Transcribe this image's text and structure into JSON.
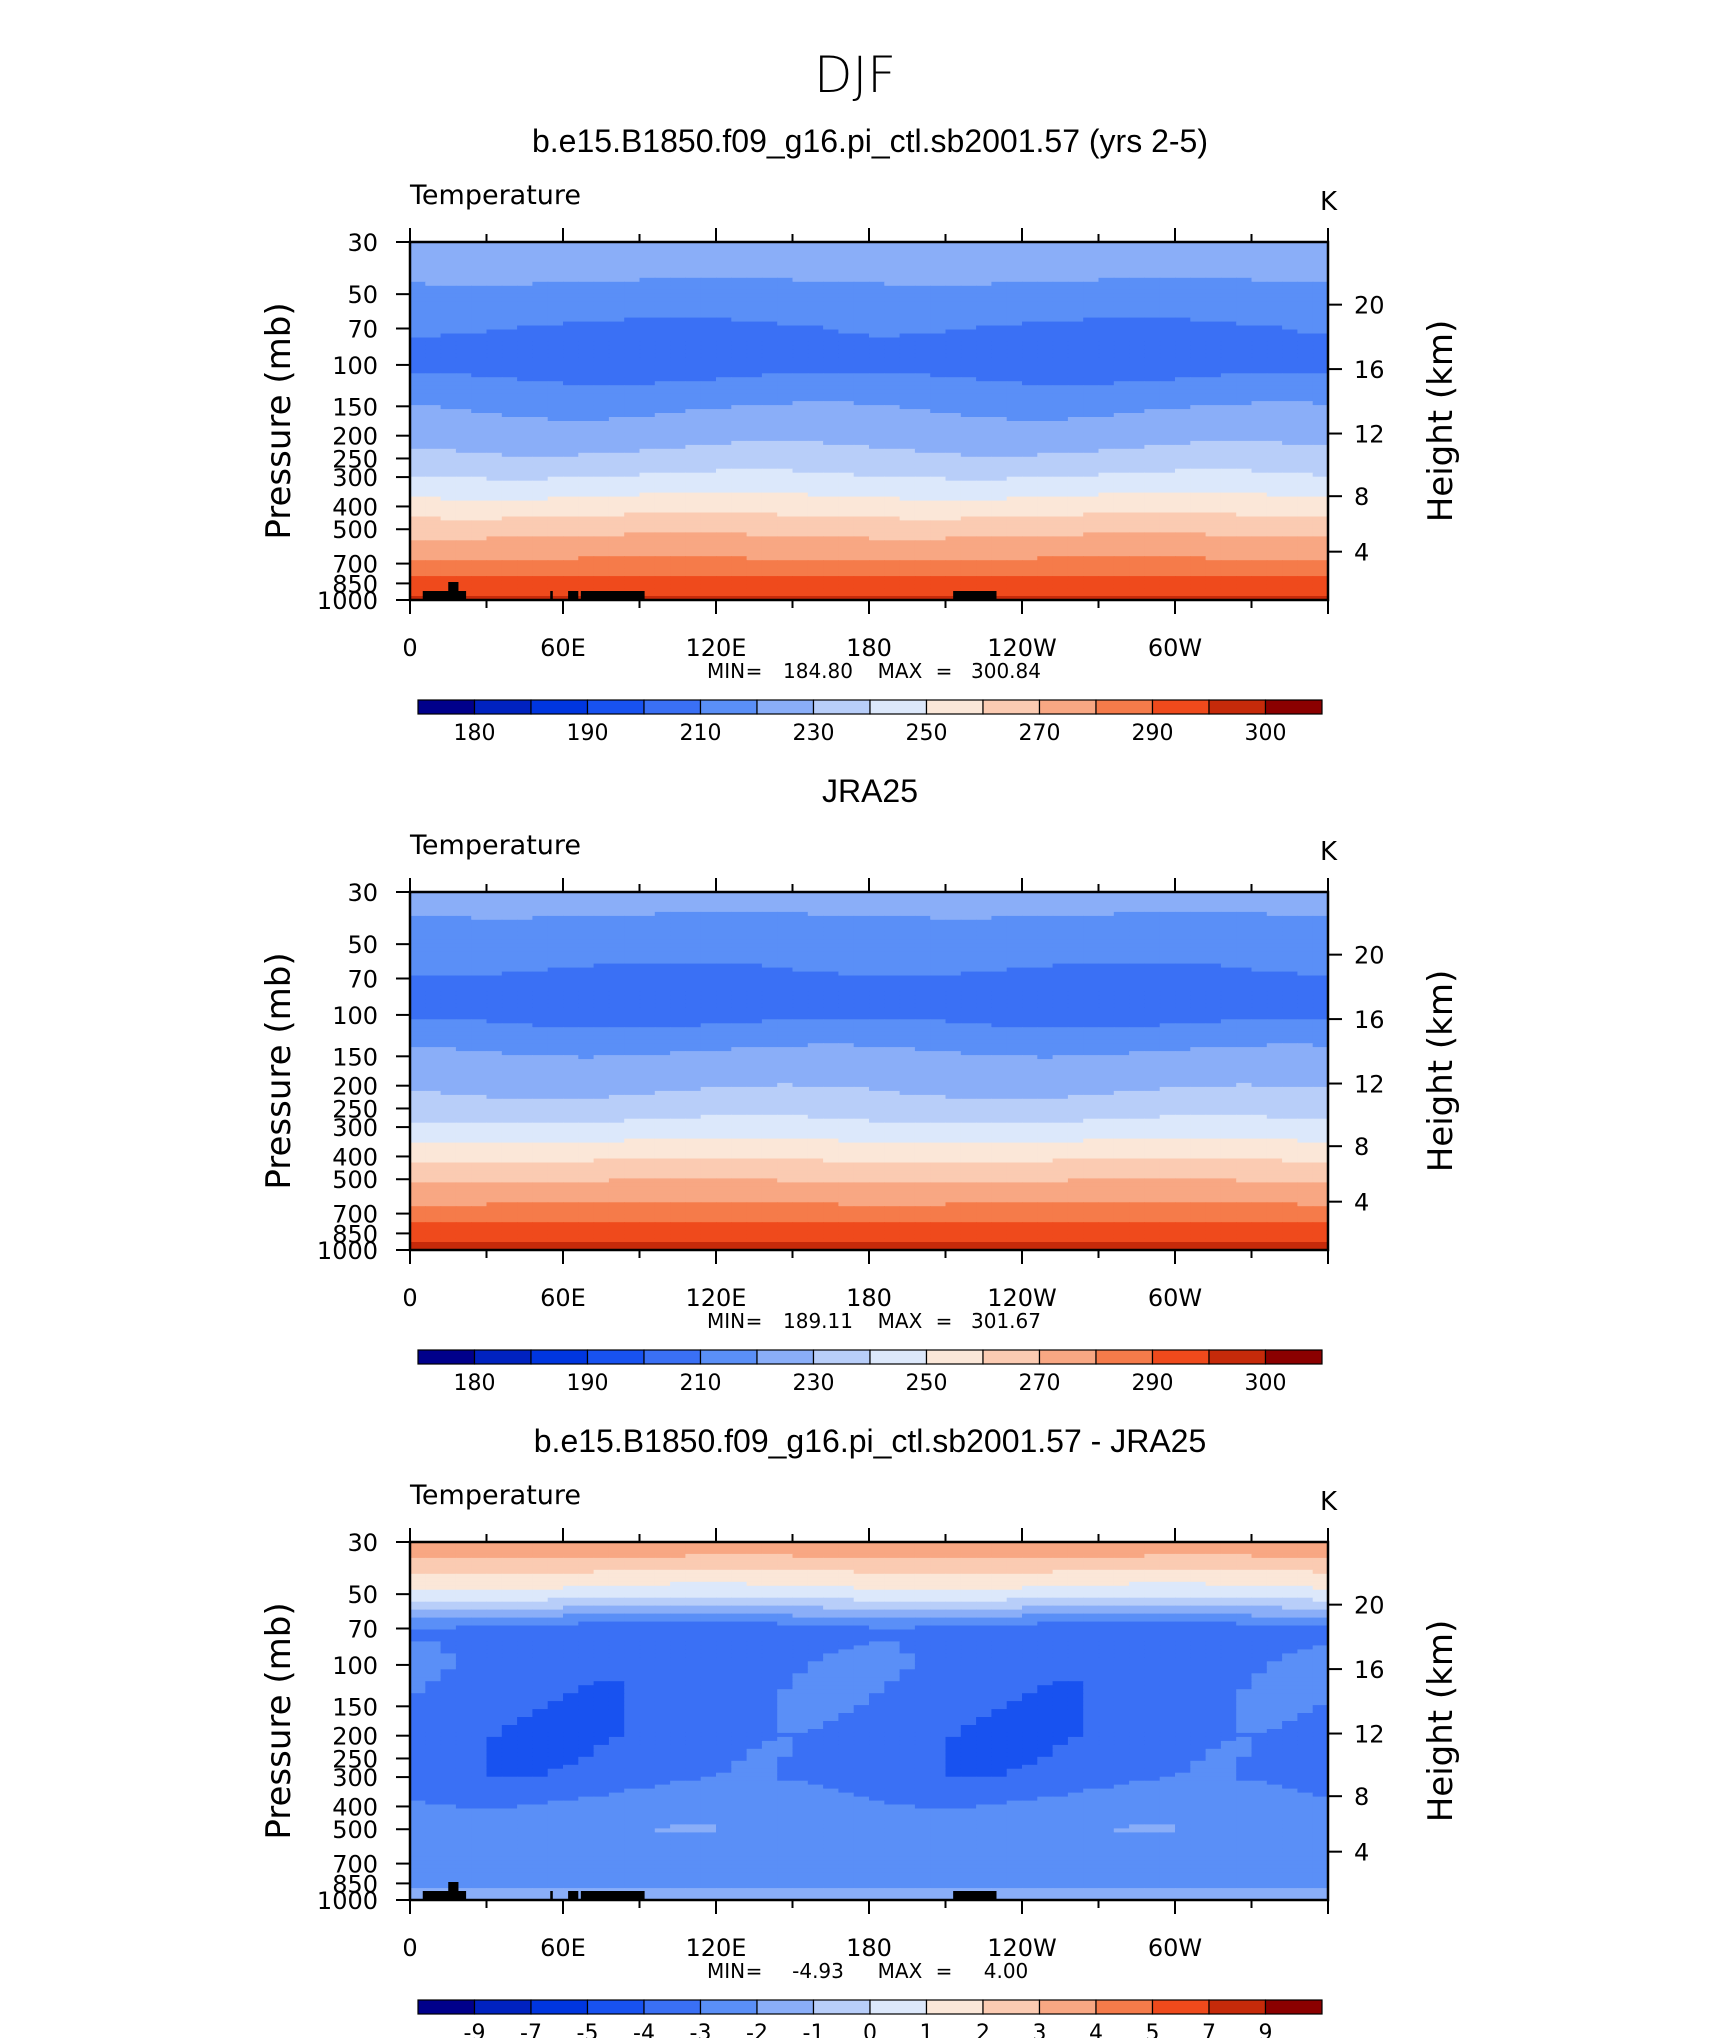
{
  "figure_title": "DJF",
  "chart_data": [
    {
      "type": "heatmap",
      "title": "b.e15.B1850.f09_g16.pi_ctl.sb2001.57 (yrs 2-5)",
      "variable_label": "Temperature",
      "units_label": "K",
      "ylabel": "Pressure (mb)",
      "right_ylabel": "Height (km)",
      "x_ticks": [
        "0",
        "60E",
        "120E",
        "180",
        "120W",
        "60W"
      ],
      "y_ticks": [
        "30",
        "50",
        "70",
        "100",
        "150",
        "200",
        "250",
        "300",
        "400",
        "500",
        "700",
        "850",
        "1000"
      ],
      "right_ticks": [
        "20",
        "16",
        "12",
        "8",
        "4"
      ],
      "stats": {
        "min_label": "MIN",
        "min": "184.80",
        "max_label": "MAX",
        "max": "300.84"
      },
      "colorbar_labels": [
        "180",
        "190",
        "210",
        "230",
        "250",
        "270",
        "290",
        "300"
      ],
      "levels": [
        175,
        180,
        185,
        190,
        200,
        210,
        220,
        230,
        240,
        250,
        260,
        270,
        280,
        290,
        295,
        300
      ],
      "profile": [
        {
          "p": 30,
          "v": 219
        },
        {
          "p": 50,
          "v": 207
        },
        {
          "p": 70,
          "v": 199
        },
        {
          "p": 100,
          "v": 196
        },
        {
          "p": 150,
          "v": 209
        },
        {
          "p": 200,
          "v": 216
        },
        {
          "p": 250,
          "v": 223
        },
        {
          "p": 300,
          "v": 231
        },
        {
          "p": 400,
          "v": 245
        },
        {
          "p": 500,
          "v": 257
        },
        {
          "p": 700,
          "v": 272
        },
        {
          "p": 850,
          "v": 284
        },
        {
          "p": 1000,
          "v": 291
        }
      ]
    },
    {
      "type": "heatmap",
      "title": "JRA25",
      "variable_label": "Temperature",
      "units_label": "K",
      "ylabel": "Pressure (mb)",
      "right_ylabel": "Height (km)",
      "x_ticks": [
        "0",
        "60E",
        "120E",
        "180",
        "120W",
        "60W"
      ],
      "y_ticks": [
        "30",
        "50",
        "70",
        "100",
        "150",
        "200",
        "250",
        "300",
        "400",
        "500",
        "700",
        "850",
        "1000"
      ],
      "right_ticks": [
        "20",
        "16",
        "12",
        "8",
        "4"
      ],
      "stats": {
        "min_label": "MIN",
        "min": "189.11",
        "max_label": "MAX",
        "max": "301.67"
      },
      "colorbar_labels": [
        "180",
        "190",
        "210",
        "230",
        "250",
        "270",
        "290",
        "300"
      ],
      "levels": [
        175,
        180,
        185,
        190,
        200,
        210,
        220,
        230,
        240,
        250,
        260,
        270,
        280,
        290,
        295,
        300
      ],
      "profile": [
        {
          "p": 30,
          "v": 214
        },
        {
          "p": 50,
          "v": 205
        },
        {
          "p": 70,
          "v": 198
        },
        {
          "p": 100,
          "v": 197
        },
        {
          "p": 150,
          "v": 212
        },
        {
          "p": 200,
          "v": 218
        },
        {
          "p": 250,
          "v": 225
        },
        {
          "p": 300,
          "v": 233
        },
        {
          "p": 400,
          "v": 248
        },
        {
          "p": 500,
          "v": 259
        },
        {
          "p": 700,
          "v": 275
        },
        {
          "p": 850,
          "v": 286
        },
        {
          "p": 1000,
          "v": 293
        }
      ]
    },
    {
      "type": "heatmap",
      "title": "b.e15.B1850.f09_g16.pi_ctl.sb2001.57 - JRA25",
      "variable_label": "Temperature",
      "units_label": "K",
      "ylabel": "Pressure (mb)",
      "right_ylabel": "Height (km)",
      "x_ticks": [
        "0",
        "60E",
        "120E",
        "180",
        "120W",
        "60W"
      ],
      "y_ticks": [
        "30",
        "50",
        "70",
        "100",
        "150",
        "200",
        "250",
        "300",
        "400",
        "500",
        "700",
        "850",
        "1000"
      ],
      "right_ticks": [
        "20",
        "16",
        "12",
        "8",
        "4"
      ],
      "stats": {
        "min_label": "MIN",
        "min": "-4.93",
        "max_label": "MAX",
        "max": "4.00"
      },
      "colorbar_labels": [
        "-9",
        "-7",
        "-5",
        "-4",
        "-3",
        "-2",
        "-1",
        "0",
        "1",
        "2",
        "3",
        "4",
        "5",
        "7",
        "9"
      ],
      "levels": [
        -9,
        -7,
        -5,
        -4,
        -3,
        -2,
        -1,
        0,
        1,
        2,
        3,
        4,
        5,
        7,
        9
      ],
      "profile": [
        {
          "p": 30,
          "v": 4.0
        },
        {
          "p": 40,
          "v": 2.0
        },
        {
          "p": 50,
          "v": 0.5
        },
        {
          "p": 70,
          "v": -3.5
        },
        {
          "p": 100,
          "v": -3.4
        },
        {
          "p": 150,
          "v": -3.5
        },
        {
          "p": 200,
          "v": -3.6
        },
        {
          "p": 300,
          "v": -3.5
        },
        {
          "p": 400,
          "v": -2.6
        },
        {
          "p": 500,
          "v": -2.3
        },
        {
          "p": 700,
          "v": -2.6
        },
        {
          "p": 850,
          "v": -2.2
        },
        {
          "p": 1000,
          "v": -1.5
        }
      ]
    }
  ],
  "colors": {
    "palette": [
      "#00008b",
      "#0022c0",
      "#0036e0",
      "#1852f0",
      "#3a70f5",
      "#5a8ff7",
      "#8aaef8",
      "#b8cef9",
      "#dce8fb",
      "#fbe7d8",
      "#fbcbb2",
      "#f8a783",
      "#f57b4a",
      "#ef4a1c",
      "#c62a0a",
      "#8b0000"
    ],
    "terrain": "#000000"
  }
}
